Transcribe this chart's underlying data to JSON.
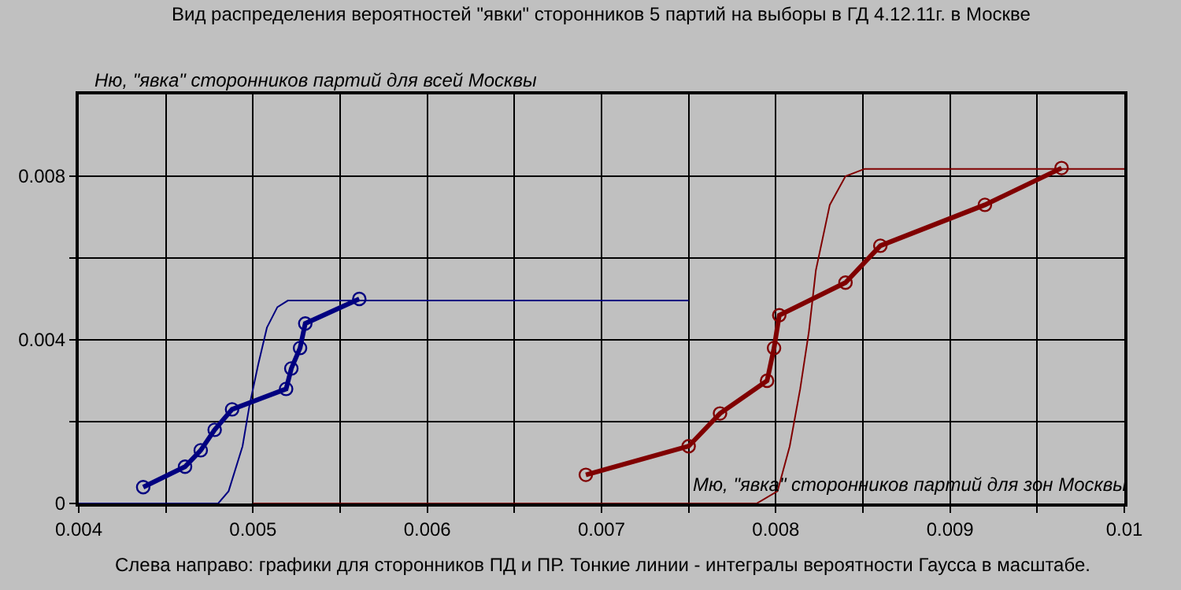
{
  "chart_data": {
    "type": "line",
    "title": "Вид распределения вероятностей \"явки\" сторонников 5 партий на выборы в ГД 4.12.11г. в Москве",
    "xlabel": "Мю, \"явка\" сторонников партий для зон Москвы",
    "ylabel": "Ню, \"явка\" сторонников партий для всей Москвы",
    "annotations": [
      "Слева направо: графики для сторонников ПД и ПР. Тонкие линии - интегралы вероятности Гаусса в масштабе."
    ],
    "xlim": [
      0.004,
      0.01
    ],
    "xticks": [
      0.004,
      {
        "value": 0.0045,
        "label": null
      },
      0.005,
      {
        "value": 0.0055,
        "label": null
      },
      0.006,
      {
        "value": 0.0065,
        "label": null
      },
      0.007,
      {
        "value": 0.0075,
        "label": null
      },
      0.008,
      {
        "value": 0.0085,
        "label": null
      },
      0.009,
      {
        "value": 0.0095,
        "label": null
      },
      0.01
    ],
    "ylim": [
      0,
      0.01
    ],
    "yticks": [
      0,
      {
        "value": 0.002,
        "label": null
      },
      0.004,
      {
        "value": 0.006,
        "label": null
      },
      0.008
    ],
    "grid": true,
    "series": [
      {
        "color": "#000080",
        "marker": "none",
        "x": [
          0.004,
          0.0048,
          0.00486,
          0.00494,
          0.00498,
          0.00503,
          0.00508,
          0.00514,
          0.0052,
          0.0075
        ],
        "values": [
          0,
          0,
          0.0003,
          0.0014,
          0.0024,
          0.0034,
          0.0043,
          0.0048,
          0.00496,
          0.00496
        ]
      },
      {
        "color": "#800000",
        "marker": "none",
        "x": [
          0.005,
          0.00789,
          0.00801,
          0.00808,
          0.00814,
          0.00819,
          0.00823,
          0.00831,
          0.0084,
          0.00851,
          0.01
        ],
        "values": [
          0,
          0,
          0.0003,
          0.0014,
          0.0028,
          0.0042,
          0.0057,
          0.0073,
          0.008,
          0.00818,
          0.00818
        ]
      },
      {
        "color": "#000080",
        "marker": "circle",
        "x": [
          0.00437,
          0.00461,
          0.0047,
          0.00478,
          0.00488,
          0.00519,
          0.00522,
          0.00527,
          0.0053,
          0.00561
        ],
        "values": [
          0.0004,
          0.0009,
          0.0013,
          0.0018,
          0.0023,
          0.0028,
          0.0033,
          0.0038,
          0.0044,
          0.005
        ]
      },
      {
        "color": "#800000",
        "marker": "circle",
        "x": [
          0.00691,
          0.0075,
          0.00768,
          0.00795,
          0.00799,
          0.00802,
          0.0084,
          0.0086,
          0.0092,
          0.00964
        ],
        "values": [
          0.0007,
          0.0014,
          0.0022,
          0.003,
          0.0038,
          0.0046,
          0.0054,
          0.0063,
          0.0073,
          0.0082
        ]
      }
    ]
  }
}
